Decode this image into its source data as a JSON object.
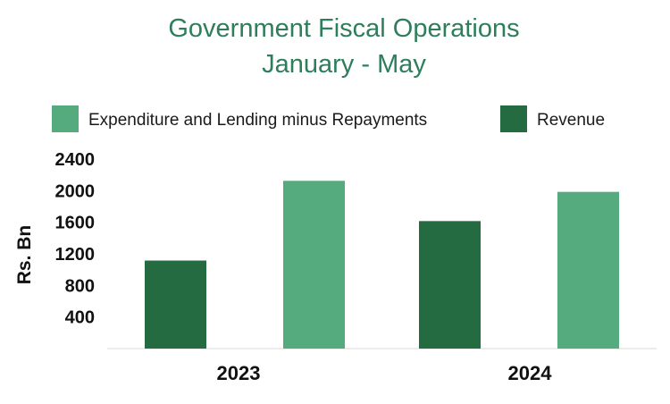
{
  "chart_data": {
    "type": "bar",
    "title": "Government Fiscal Operations",
    "subtitle": "January  - May",
    "ylabel": "Rs. Bn",
    "xlabel": "",
    "categories": [
      "2023",
      "2024"
    ],
    "series": [
      {
        "name": "Revenue",
        "color": "#256b41",
        "values": [
          1115,
          1615
        ]
      },
      {
        "name": "Expenditure and Lending minus Repayments",
        "color": "#56ab7e",
        "values": [
          2125,
          1985
        ]
      }
    ],
    "legend_order": [
      1,
      0
    ],
    "yticks": [
      "400",
      "800",
      "1200",
      "1600",
      "2000",
      "2400"
    ],
    "ylim": [
      0,
      2400
    ],
    "grid": false,
    "legend_position": "top"
  }
}
